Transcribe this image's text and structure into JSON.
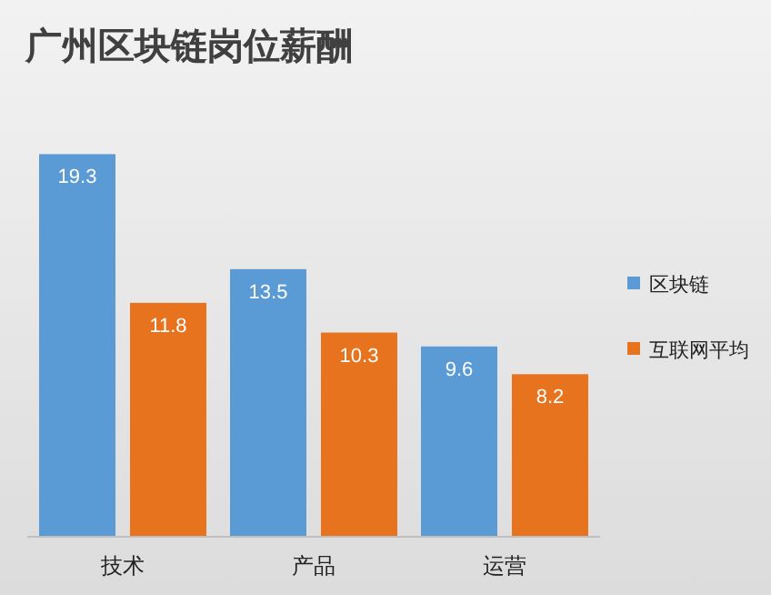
{
  "chart_data": {
    "type": "bar",
    "title": "广州区块链岗位薪酬",
    "categories": [
      "技术",
      "产品",
      "运营"
    ],
    "series": [
      {
        "name": "区块链",
        "color": "#5b9bd5",
        "values": [
          19.3,
          13.5,
          9.6
        ]
      },
      {
        "name": "互联网平均",
        "color": "#e8731e",
        "values": [
          11.8,
          10.3,
          8.2
        ]
      }
    ],
    "data_labels": true,
    "legend": "right"
  }
}
